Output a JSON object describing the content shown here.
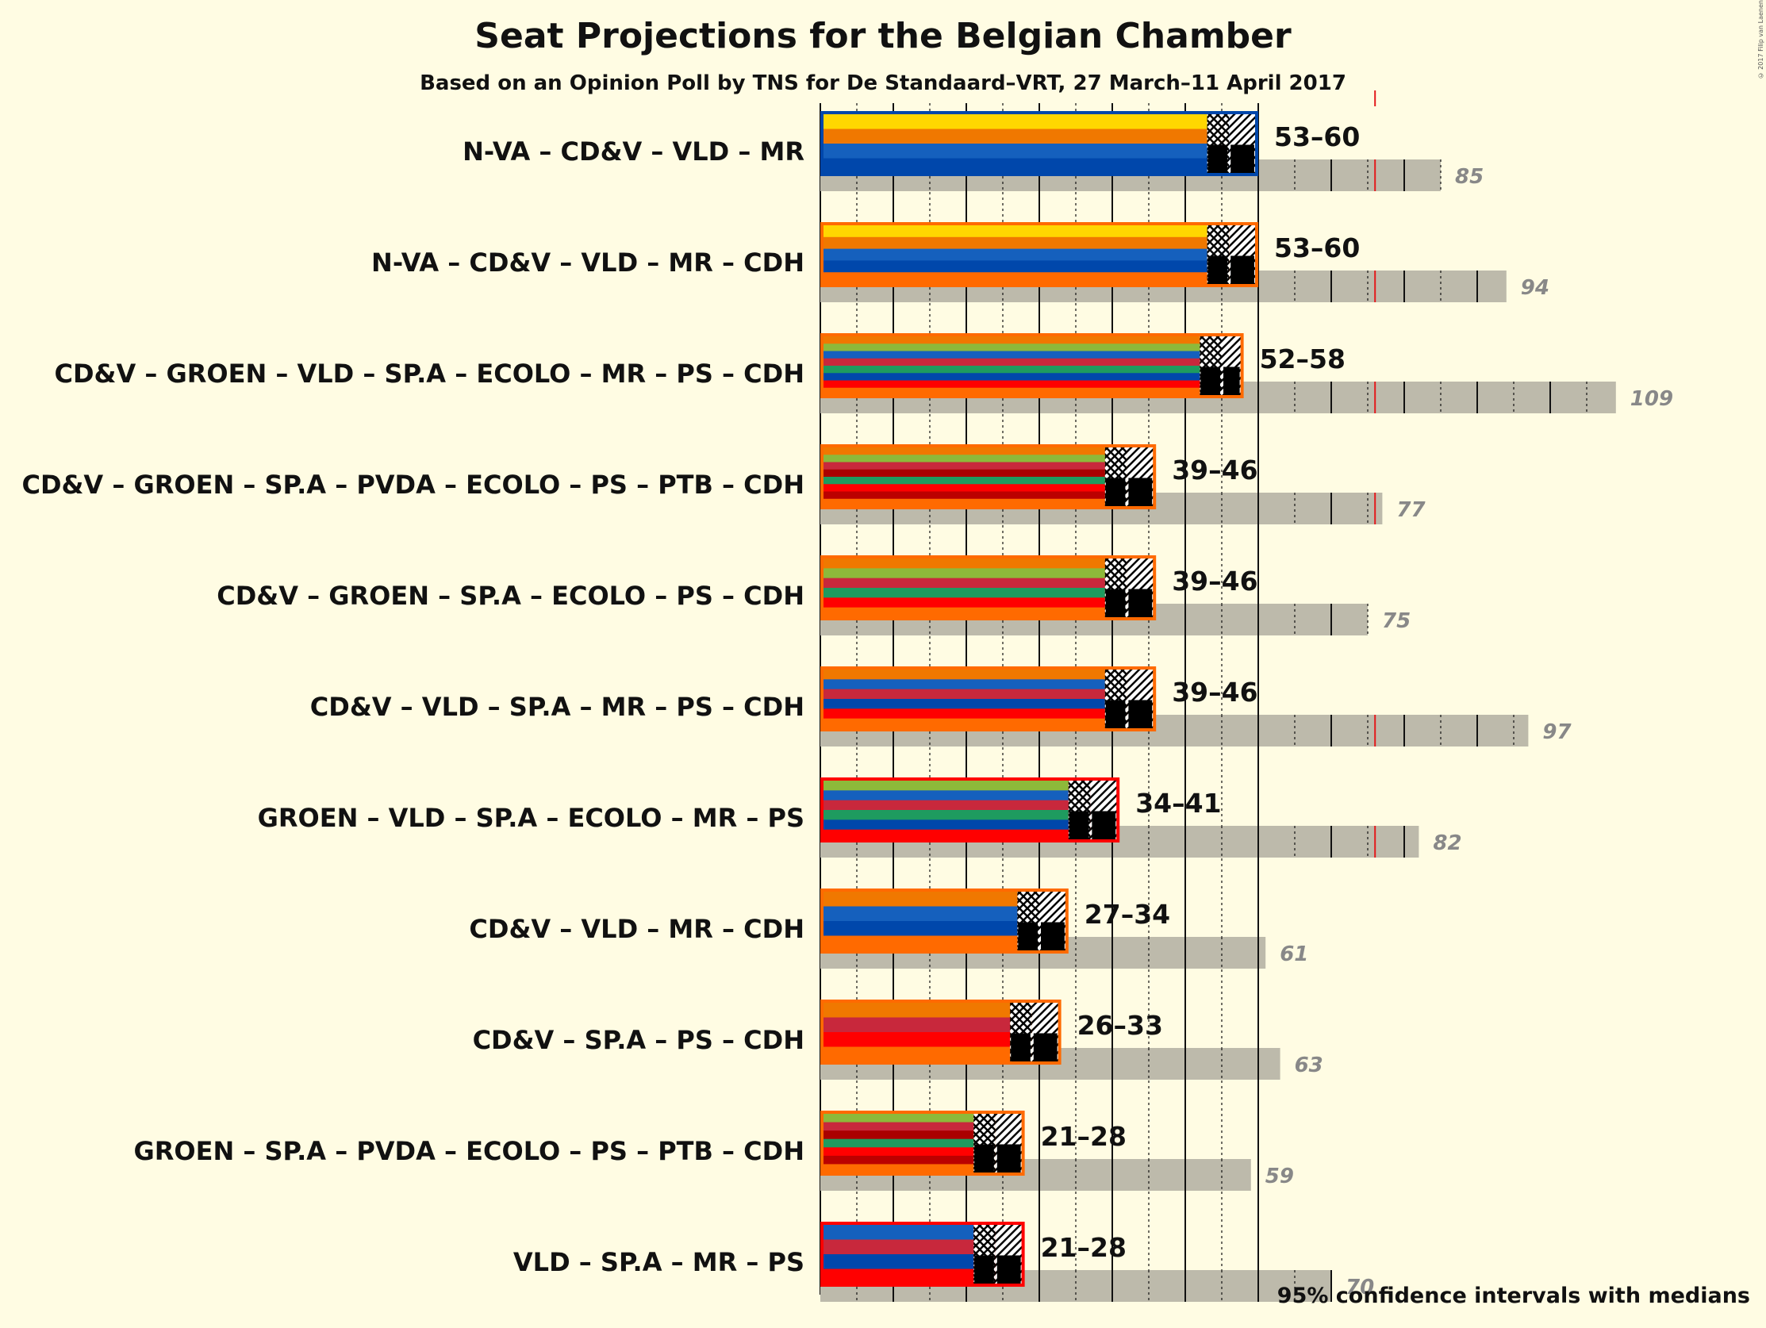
{
  "title": "Seat Projections for the Belgian Chamber",
  "subtitle": "Based on an Opinion Poll by TNS for De Standaard–VRT, 27 March–11 April 2017",
  "copyright": "© 2017 Filip van Laenen",
  "legend_note": "95% confidence intervals with medians",
  "colors": {
    "N-VA": "#FFD700",
    "CD&V": "#F07800",
    "VLD": "#1560BD",
    "MR": "#0047AB",
    "CDH": "#FF6A00",
    "GROEN": "#8DB93A",
    "SP.A": "#C8283C",
    "ECOLO": "#1E9B5F",
    "PS": "#FF0000",
    "PVDA": "#AA0000",
    "PTB": "#BB0000",
    "majority_line": "#E31A1C",
    "grey_bar": "#BDBAAB",
    "background": "#FFFCE3"
  },
  "chart_data": {
    "type": "bar",
    "orientation": "horizontal",
    "title": "Seat Projections for the Belgian Chamber",
    "subtitle": "Based on an Opinion Poll by TNS for De Standaard–VRT, 27 March–11 April 2017",
    "xlim": [
      0,
      150
    ],
    "majority": 76,
    "grid": "every 5 seats (major every 10)",
    "legend_placement": "bottom-right",
    "coalitions": [
      {
        "label": "N-VA – CD&V – VLD – MR",
        "parties": [
          "N-VA",
          "CD&V",
          "VLD",
          "MR"
        ],
        "low": 53,
        "median": 56,
        "high": 60,
        "range_label": "53–60",
        "last_result": 85
      },
      {
        "label": "N-VA – CD&V – VLD – MR – CDH",
        "parties": [
          "N-VA",
          "CD&V",
          "VLD",
          "MR",
          "CDH"
        ],
        "low": 53,
        "median": 56,
        "high": 60,
        "range_label": "53–60",
        "last_result": 94
      },
      {
        "label": "CD&V – GROEN – VLD – SP.A – ECOLO – MR – PS – CDH",
        "parties": [
          "CD&V",
          "GROEN",
          "VLD",
          "SP.A",
          "ECOLO",
          "MR",
          "PS",
          "CDH"
        ],
        "low": 52,
        "median": 55,
        "high": 58,
        "range_label": "52–58",
        "last_result": 109
      },
      {
        "label": "CD&V – GROEN – SP.A – PVDA – ECOLO – PS – PTB – CDH",
        "parties": [
          "CD&V",
          "GROEN",
          "SP.A",
          "PVDA",
          "ECOLO",
          "PS",
          "PTB",
          "CDH"
        ],
        "low": 39,
        "median": 42,
        "high": 46,
        "range_label": "39–46",
        "last_result": 77
      },
      {
        "label": "CD&V – GROEN – SP.A – ECOLO – PS – CDH",
        "parties": [
          "CD&V",
          "GROEN",
          "SP.A",
          "ECOLO",
          "PS",
          "CDH"
        ],
        "low": 39,
        "median": 42,
        "high": 46,
        "range_label": "39–46",
        "last_result": 75
      },
      {
        "label": "CD&V – VLD – SP.A – MR – PS – CDH",
        "parties": [
          "CD&V",
          "VLD",
          "SP.A",
          "MR",
          "PS",
          "CDH"
        ],
        "low": 39,
        "median": 42,
        "high": 46,
        "range_label": "39–46",
        "last_result": 97
      },
      {
        "label": "GROEN – VLD – SP.A – ECOLO – MR – PS",
        "parties": [
          "GROEN",
          "VLD",
          "SP.A",
          "ECOLO",
          "MR",
          "PS"
        ],
        "low": 34,
        "median": 37,
        "high": 41,
        "range_label": "34–41",
        "last_result": 82
      },
      {
        "label": "CD&V – VLD – MR – CDH",
        "parties": [
          "CD&V",
          "VLD",
          "MR",
          "CDH"
        ],
        "low": 27,
        "median": 30,
        "high": 34,
        "range_label": "27–34",
        "last_result": 61
      },
      {
        "label": "CD&V – SP.A – PS – CDH",
        "parties": [
          "CD&V",
          "SP.A",
          "PS",
          "CDH"
        ],
        "low": 26,
        "median": 29,
        "high": 33,
        "range_label": "26–33",
        "last_result": 63
      },
      {
        "label": "GROEN – SP.A – PVDA – ECOLO – PS – PTB – CDH",
        "parties": [
          "GROEN",
          "SP.A",
          "PVDA",
          "ECOLO",
          "PS",
          "PTB",
          "CDH"
        ],
        "low": 21,
        "median": 24,
        "high": 28,
        "range_label": "21–28",
        "last_result": 59
      },
      {
        "label": "VLD – SP.A – MR – PS",
        "parties": [
          "VLD",
          "SP.A",
          "MR",
          "PS"
        ],
        "low": 21,
        "median": 24,
        "high": 28,
        "range_label": "21–28",
        "last_result": 70
      }
    ]
  }
}
